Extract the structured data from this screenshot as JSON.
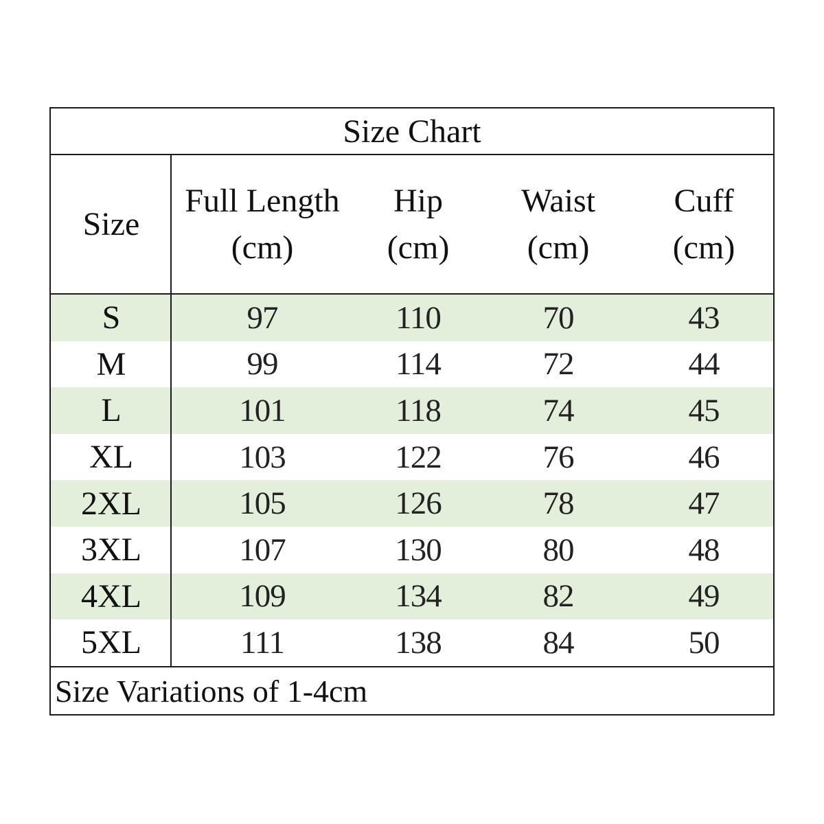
{
  "title": "Size Chart",
  "headers": {
    "size": "Size",
    "full_length": [
      "Full Length",
      "(cm)"
    ],
    "hip": [
      "Hip",
      "(cm)"
    ],
    "waist": [
      "Waist",
      "(cm)"
    ],
    "cuff": [
      "Cuff",
      "(cm)"
    ]
  },
  "rows": [
    {
      "size": "S",
      "full_length": "97",
      "hip": "110",
      "waist": "70",
      "cuff": "43"
    },
    {
      "size": "M",
      "full_length": "99",
      "hip": "114",
      "waist": "72",
      "cuff": "44"
    },
    {
      "size": "L",
      "full_length": "101",
      "hip": "118",
      "waist": "74",
      "cuff": "45"
    },
    {
      "size": "XL",
      "full_length": "103",
      "hip": "122",
      "waist": "76",
      "cuff": "46"
    },
    {
      "size": "2XL",
      "full_length": "105",
      "hip": "126",
      "waist": "78",
      "cuff": "47"
    },
    {
      "size": "3XL",
      "full_length": "107",
      "hip": "130",
      "waist": "80",
      "cuff": "48"
    },
    {
      "size": "4XL",
      "full_length": "109",
      "hip": "134",
      "waist": "82",
      "cuff": "49"
    },
    {
      "size": "5XL",
      "full_length": "111",
      "hip": "138",
      "waist": "84",
      "cuff": "50"
    }
  ],
  "footer": "Size Variations of 1-4cm",
  "colors": {
    "row_shade": "#e3efda",
    "border": "#1a1a1a"
  }
}
